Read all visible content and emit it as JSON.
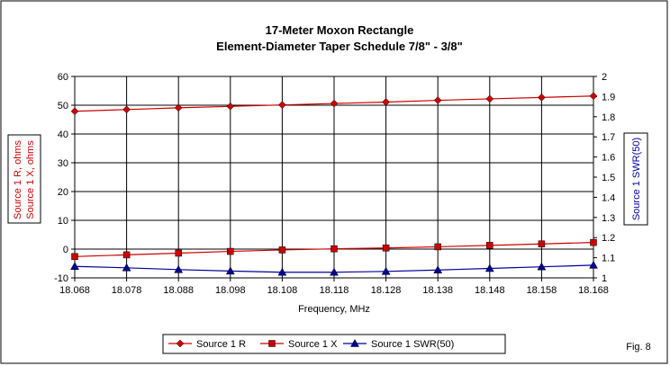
{
  "figure_label": "Fig. 8",
  "chart_data": {
    "type": "line",
    "title": "17-Meter Moxon Rectangle",
    "subtitle": "Element-Diameter Taper Schedule 7/8\" - 3/8\"",
    "xlabel": "Frequency, MHz",
    "ylabel_left": [
      "Source 1 R,  ohms",
      "Source 1 X,  ohms"
    ],
    "ylabel_right": "Source 1 SWR(50)",
    "x": [
      "18.068",
      "18.078",
      "18.088",
      "18.098",
      "18.108",
      "18.118",
      "18.128",
      "18.138",
      "18.148",
      "18.158",
      "18.168"
    ],
    "ylim_left": [
      -10,
      60
    ],
    "yticks_left": [
      -10,
      0,
      10,
      20,
      30,
      40,
      50,
      60
    ],
    "ylim_right": [
      1,
      2
    ],
    "yticks_right": [
      "1",
      "1.1",
      "1.2",
      "1.3",
      "1.4",
      "1.5",
      "1.6",
      "1.7",
      "1.8",
      "1.9",
      "2"
    ],
    "grid": true,
    "legend_position": "bottom",
    "series": [
      {
        "name": "Source 1 R",
        "axis": "left",
        "color": "#cc0000",
        "marker": "diamond",
        "values": [
          47.9,
          48.5,
          49.1,
          49.6,
          50.1,
          50.6,
          51.1,
          51.7,
          52.2,
          52.7,
          53.2
        ]
      },
      {
        "name": "Source 1 X",
        "axis": "left",
        "color": "#cc0000",
        "marker": "square",
        "values": [
          -2.6,
          -2.0,
          -1.4,
          -0.8,
          -0.3,
          0.1,
          0.4,
          0.8,
          1.3,
          1.8,
          2.3
        ]
      },
      {
        "name": "Source 1 SWR(50)",
        "axis": "right",
        "color": "#000099",
        "marker": "triangle",
        "values": [
          1.057,
          1.05,
          1.041,
          1.034,
          1.028,
          1.028,
          1.032,
          1.039,
          1.047,
          1.055,
          1.063
        ]
      }
    ]
  }
}
